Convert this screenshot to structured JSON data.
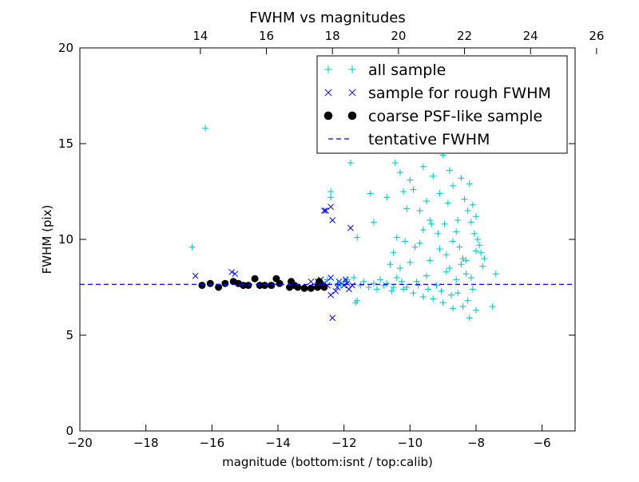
{
  "chart_data": {
    "type": "scatter",
    "title": "FWHM vs magnitudes",
    "xlabel": "magnitude (bottom:isnt / top:calib)",
    "ylabel": "FWHM (pix)",
    "xlim": [
      -20,
      -5
    ],
    "ylim": [
      0,
      20
    ],
    "x_ticks": [
      -20,
      -18,
      -16,
      -14,
      -12,
      -10,
      -8,
      -6
    ],
    "x_tick_labels": [
      "−20",
      "−18",
      "−16",
      "−14",
      "−12",
      "−10",
      "−8",
      "−6"
    ],
    "y_ticks": [
      0,
      5,
      10,
      15,
      20
    ],
    "y_tick_labels": [
      "0",
      "5",
      "10",
      "15",
      "20"
    ],
    "top_axis": {
      "label_offset": 30.35,
      "ticks": [
        14,
        16,
        18,
        20,
        22,
        24,
        26
      ],
      "tick_labels": [
        "14",
        "16",
        "18",
        "20",
        "22",
        "24",
        "26"
      ]
    },
    "grid": false,
    "legend_position": "top-right",
    "colors": {
      "all_sample": "#00bfbf",
      "rough_sample": "#0000ff",
      "psf_sample": "#000000",
      "tentative_line": "#0000ff"
    },
    "series": [
      {
        "name": "all sample",
        "marker": "plus",
        "points": [
          [
            -16.6,
            9.6
          ],
          [
            -16.2,
            15.8
          ],
          [
            -12.4,
            12.5
          ],
          [
            -12.4,
            12.2
          ],
          [
            -11.8,
            14.0
          ],
          [
            -11.6,
            10.1
          ],
          [
            -11.2,
            12.4
          ],
          [
            -11.1,
            10.9
          ],
          [
            -10.7,
            12.2
          ],
          [
            -10.5,
            9.3
          ],
          [
            -10.4,
            10.1
          ],
          [
            -10.45,
            14.0
          ],
          [
            -10.3,
            13.5
          ],
          [
            -10.2,
            12.5
          ],
          [
            -10.1,
            11.6
          ],
          [
            -10.0,
            13.1
          ],
          [
            -9.9,
            12.6
          ],
          [
            -9.8,
            14.7
          ],
          [
            -9.7,
            11.5
          ],
          [
            -9.6,
            13.8
          ],
          [
            -9.5,
            12.0
          ],
          [
            -9.4,
            11.0
          ],
          [
            -9.3,
            13.3
          ],
          [
            -9.2,
            15.0
          ],
          [
            -9.1,
            12.4
          ],
          [
            -9.0,
            14.4
          ],
          [
            -8.95,
            10.8
          ],
          [
            -8.9,
            16.5
          ],
          [
            -8.85,
            11.9
          ],
          [
            -8.8,
            13.6
          ],
          [
            -8.75,
            17.3
          ],
          [
            -8.7,
            12.8
          ],
          [
            -8.65,
            18.4
          ],
          [
            -8.6,
            15.6
          ],
          [
            -8.55,
            11.0
          ],
          [
            -8.5,
            17.8
          ],
          [
            -8.45,
            13.2
          ],
          [
            -8.4,
            16.2
          ],
          [
            -8.35,
            12.1
          ],
          [
            -8.3,
            14.9
          ],
          [
            -8.25,
            11.5
          ],
          [
            -8.2,
            12.9
          ],
          [
            -8.15,
            10.9
          ],
          [
            -8.1,
            11.8
          ],
          [
            -8.05,
            10.3
          ],
          [
            -8.0,
            11.2
          ],
          [
            -7.95,
            10.0
          ],
          [
            -7.9,
            9.7
          ],
          [
            -7.85,
            9.3
          ],
          [
            -7.8,
            8.6
          ],
          [
            -7.75,
            9.0
          ],
          [
            -7.4,
            8.2
          ],
          [
            -7.5,
            6.5
          ],
          [
            -8.0,
            6.3
          ],
          [
            -8.2,
            5.9
          ],
          [
            -8.4,
            6.5
          ],
          [
            -8.7,
            6.4
          ],
          [
            -9.0,
            6.7
          ],
          [
            -9.3,
            6.9
          ],
          [
            -9.6,
            7.0
          ],
          [
            -9.9,
            7.2
          ],
          [
            -10.2,
            7.4
          ],
          [
            -10.5,
            7.5
          ],
          [
            -10.8,
            7.6
          ],
          [
            -11.1,
            7.7
          ],
          [
            -11.4,
            7.8
          ],
          [
            -11.6,
            6.8
          ],
          [
            -11.65,
            6.7
          ],
          [
            -11.7,
            8.0
          ],
          [
            -11.9,
            7.9
          ],
          [
            -12.0,
            7.8
          ],
          [
            -12.2,
            7.7
          ],
          [
            -12.5,
            7.9
          ],
          [
            -12.7,
            7.8
          ],
          [
            -11.0,
            7.4
          ],
          [
            -10.7,
            7.7
          ],
          [
            -10.4,
            8.0
          ],
          [
            -10.1,
            7.5
          ],
          [
            -9.8,
            7.8
          ],
          [
            -9.5,
            8.1
          ],
          [
            -9.2,
            7.6
          ],
          [
            -8.9,
            8.3
          ],
          [
            -8.6,
            7.9
          ],
          [
            -8.3,
            8.2
          ],
          [
            -8.1,
            7.4
          ],
          [
            -8.9,
            9.2
          ],
          [
            -9.1,
            9.5
          ],
          [
            -9.4,
            8.9
          ],
          [
            -9.7,
            9.8
          ],
          [
            -10.0,
            8.8
          ],
          [
            -10.6,
            8.7
          ],
          [
            -10.3,
            8.5
          ],
          [
            -8.5,
            9.6
          ],
          [
            -8.6,
            10.4
          ],
          [
            -8.4,
            9.0
          ],
          [
            -8.8,
            8.5
          ],
          [
            -8.3,
            8.9
          ],
          [
            -8.0,
            9.4
          ],
          [
            -8.15,
            8.0
          ],
          [
            -8.45,
            8.7
          ],
          [
            -8.7,
            9.9
          ],
          [
            -9.15,
            10.3
          ],
          [
            -9.35,
            10.8
          ],
          [
            -9.6,
            10.5
          ],
          [
            -9.85,
            9.6
          ],
          [
            -10.15,
            9.9
          ],
          [
            -8.55,
            7.2
          ],
          [
            -8.25,
            6.8
          ],
          [
            -8.75,
            7.1
          ],
          [
            -9.05,
            7.3
          ],
          [
            -9.45,
            7.4
          ],
          [
            -9.75,
            7.6
          ],
          [
            -10.25,
            7.8
          ],
          [
            -10.55,
            7.3
          ],
          [
            -10.9,
            7.9
          ],
          [
            -11.25,
            7.5
          ],
          [
            -11.5,
            7.6
          ],
          [
            -12.1,
            7.6
          ]
        ]
      },
      {
        "name": "sample for rough FWHM",
        "marker": "x",
        "points": [
          [
            -16.5,
            8.1
          ],
          [
            -15.4,
            8.3
          ],
          [
            -15.3,
            8.2
          ],
          [
            -14.2,
            7.6
          ],
          [
            -13.0,
            7.8
          ],
          [
            -12.8,
            7.6
          ],
          [
            -12.6,
            11.5
          ],
          [
            -12.55,
            11.5
          ],
          [
            -12.4,
            11.7
          ],
          [
            -12.35,
            11.0
          ],
          [
            -12.4,
            8.0
          ],
          [
            -12.5,
            7.6
          ],
          [
            -12.4,
            7.1
          ],
          [
            -12.35,
            5.9
          ],
          [
            -12.2,
            7.5
          ],
          [
            -12.0,
            7.6
          ],
          [
            -11.95,
            7.9
          ],
          [
            -11.9,
            7.7
          ],
          [
            -11.85,
            7.4
          ],
          [
            -11.8,
            10.6
          ],
          [
            -11.75,
            7.6
          ],
          [
            -12.15,
            7.8
          ],
          [
            -12.25,
            7.3
          ],
          [
            -12.6,
            7.7
          ],
          [
            -12.7,
            7.9
          ],
          [
            -12.8,
            7.8
          ]
        ]
      },
      {
        "name": "coarse PSF-like sample",
        "marker": "dot",
        "points": [
          [
            -16.3,
            7.6
          ],
          [
            -16.05,
            7.7
          ],
          [
            -15.8,
            7.5
          ],
          [
            -15.6,
            7.7
          ],
          [
            -15.35,
            7.8
          ],
          [
            -15.2,
            7.7
          ],
          [
            -15.05,
            7.6
          ],
          [
            -14.9,
            7.6
          ],
          [
            -14.7,
            7.95
          ],
          [
            -14.55,
            7.6
          ],
          [
            -14.4,
            7.6
          ],
          [
            -14.2,
            7.6
          ],
          [
            -14.05,
            7.95
          ],
          [
            -13.95,
            7.7
          ],
          [
            -13.6,
            7.8
          ],
          [
            -13.5,
            7.6
          ],
          [
            -13.4,
            7.5
          ],
          [
            -13.2,
            7.45
          ],
          [
            -13.0,
            7.45
          ],
          [
            -12.8,
            7.5
          ],
          [
            -12.75,
            7.8
          ],
          [
            -12.7,
            7.6
          ],
          [
            -12.6,
            7.5
          ],
          [
            -13.65,
            7.5
          ]
        ]
      },
      {
        "name": "tentative FWHM",
        "marker": "dashed-line",
        "y": 7.65
      }
    ]
  }
}
